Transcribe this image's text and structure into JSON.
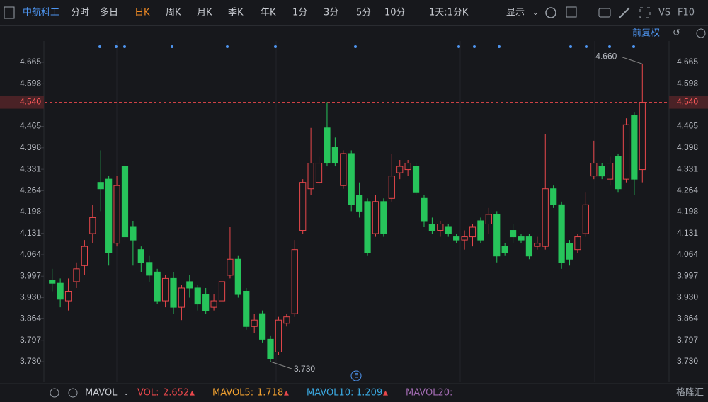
{
  "toolbar": {
    "stock": "中航科工",
    "periods": [
      "分时",
      "多日",
      "日K",
      "周K",
      "月K",
      "季K",
      "年K",
      "1分",
      "3分",
      "5分",
      "10分",
      "1天:1分K"
    ],
    "display": "显示",
    "vs": "VS",
    "f10": "F10",
    "adjust": "前复权"
  },
  "chart_data": {
    "type": "candlestick",
    "ylim": [
      3.677,
      4.738
    ],
    "yticks": [
      4.665,
      4.598,
      4.465,
      4.398,
      4.331,
      4.264,
      4.198,
      4.131,
      4.064,
      3.997,
      {
        "value": 3.93,
        "label": "3.930"
      },
      3.864,
      3.797,
      {
        "value": 3.73,
        "label": "3.730"
      }
    ],
    "up_color": "#e8474b",
    "down_color": "#27c45b",
    "open": [
      3.985,
      3.975,
      3.92,
      3.98,
      4.03,
      4.13,
      4.29,
      4.3,
      4.1,
      4.34,
      4.15,
      4.08,
      4.04,
      4.01,
      3.92,
      3.99,
      3.9,
      3.98,
      3.96,
      3.94,
      3.9,
      3.92,
      4.0,
      4.05,
      3.95,
      3.84,
      3.88,
      3.8,
      3.76,
      3.85,
      3.88,
      4.14,
      4.27,
      4.29,
      4.46,
      4.4,
      4.28,
      4.38,
      4.25,
      4.23,
      4.13,
      4.23,
      4.24,
      4.32,
      4.33,
      4.34,
      4.24,
      4.16,
      4.14,
      4.15,
      4.12,
      4.11,
      4.12,
      4.17,
      4.16,
      4.19,
      4.09,
      4.14,
      4.12,
      4.12,
      4.09,
      4.09,
      4.27,
      4.22,
      4.1,
      4.08,
      4.13,
      4.31,
      4.34,
      4.3,
      4.37,
      4.3,
      4.5,
      4.33
    ],
    "high": [
      4.02,
      3.99,
      3.99,
      4.04,
      4.11,
      4.22,
      4.39,
      4.31,
      4.31,
      4.36,
      4.17,
      4.09,
      4.06,
      4.02,
      4.0,
      4.01,
      3.97,
      4.0,
      3.97,
      3.96,
      3.94,
      4.0,
      4.15,
      4.06,
      3.96,
      3.88,
      3.89,
      3.81,
      3.87,
      3.88,
      4.11,
      4.3,
      4.46,
      4.37,
      4.54,
      4.43,
      4.39,
      4.39,
      4.29,
      4.24,
      4.25,
      4.24,
      4.38,
      4.36,
      4.36,
      4.35,
      4.25,
      4.18,
      4.17,
      4.16,
      4.13,
      4.14,
      4.16,
      4.18,
      4.21,
      4.2,
      4.1,
      4.16,
      4.13,
      4.13,
      4.12,
      4.44,
      4.28,
      4.23,
      4.11,
      4.13,
      4.26,
      4.42,
      4.35,
      4.37,
      4.38,
      4.49,
      4.51,
      4.66
    ],
    "low": [
      3.95,
      3.9,
      3.89,
      3.96,
      4.0,
      4.1,
      4.2,
      4.03,
      4.09,
      4.11,
      4.03,
      4.01,
      3.98,
      3.91,
      3.9,
      3.88,
      3.86,
      3.93,
      3.89,
      3.88,
      3.89,
      3.9,
      3.99,
      3.93,
      3.83,
      3.82,
      3.79,
      3.73,
      3.75,
      3.84,
      3.87,
      4.13,
      4.25,
      4.28,
      4.34,
      4.34,
      4.27,
      4.2,
      4.18,
      4.06,
      4.12,
      4.12,
      4.23,
      4.3,
      4.31,
      4.25,
      4.15,
      4.13,
      4.12,
      4.12,
      4.1,
      4.08,
      4.09,
      4.1,
      4.13,
      4.04,
      4.06,
      4.1,
      4.1,
      4.05,
      4.08,
      4.08,
      4.21,
      4.02,
      4.03,
      4.07,
      4.12,
      4.3,
      4.3,
      4.28,
      4.26,
      4.29,
      4.25,
      4.29
    ],
    "close": [
      3.975,
      3.925,
      3.95,
      4.02,
      4.09,
      4.18,
      4.27,
      4.07,
      4.28,
      4.12,
      4.11,
      4.04,
      4.0,
      3.92,
      3.99,
      3.9,
      3.96,
      3.96,
      3.91,
      3.89,
      3.92,
      3.98,
      4.05,
      3.94,
      3.84,
      3.86,
      3.8,
      3.74,
      3.86,
      3.87,
      4.08,
      4.29,
      4.35,
      4.35,
      4.35,
      4.35,
      4.38,
      4.22,
      4.2,
      4.07,
      4.23,
      4.13,
      4.31,
      4.34,
      4.35,
      4.26,
      4.17,
      4.14,
      4.16,
      4.13,
      4.11,
      4.12,
      4.15,
      4.11,
      4.19,
      4.06,
      4.07,
      4.12,
      4.11,
      4.06,
      4.1,
      4.27,
      4.22,
      4.04,
      4.05,
      4.12,
      4.22,
      4.35,
      4.31,
      4.35,
      4.27,
      4.47,
      4.3,
      4.54
    ],
    "current_price": {
      "value": 4.54,
      "label": "4.540"
    },
    "max_label": {
      "value": 4.66,
      "label": "4.660"
    },
    "min_label": {
      "value": 3.73,
      "label": "3.730"
    }
  },
  "indicator": {
    "name": "MAVOL",
    "vol_label": "VOL:",
    "vol": "2.652",
    "ma5_label": "MAVOL5:",
    "ma5": "1.718",
    "ma10_label": "MAVOL10:",
    "ma10": "1.209",
    "ma20_label": "MAVOL20:"
  },
  "watermark": "格隆汇"
}
